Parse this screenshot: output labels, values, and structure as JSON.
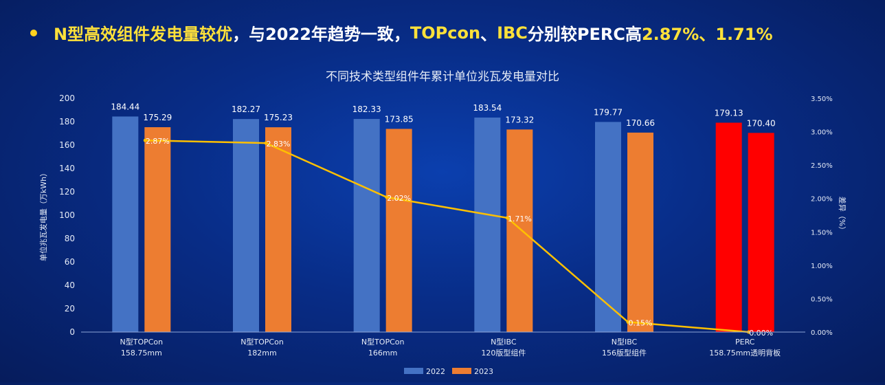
{
  "headline": {
    "part1": "N型高效组件发电量较优",
    "part2": "，与2022年趋势一致，",
    "part3": "TOPcon",
    "part4": "、",
    "part5": "IBC",
    "part6": "分别较PERC高",
    "part7": "2.87%、1.71%"
  },
  "colors": {
    "s2022": "#4472c4",
    "s2023": "#ed7d31",
    "perc": "#ff0000",
    "line": "#ffc000",
    "bullet": "#ffd21f"
  },
  "chart_data": {
    "type": "bar",
    "title": "不同技术类型组件年累计单位兆瓦发电量对比",
    "ylabel": "单位兆瓦发电量（万kWh）",
    "y2label": "差异（%）",
    "ylim": [
      0,
      200
    ],
    "yticks": [
      "0",
      "20",
      "40",
      "60",
      "80",
      "100",
      "120",
      "140",
      "160",
      "180",
      "200"
    ],
    "y2lim": [
      0,
      3.5
    ],
    "y2ticks": [
      "0.00%",
      "0.50%",
      "1.00%",
      "1.50%",
      "2.00%",
      "2.50%",
      "3.00%",
      "3.50%"
    ],
    "categories": [
      [
        "N型TOPCon",
        "158.75mm"
      ],
      [
        "N型TOPCon",
        "182mm"
      ],
      [
        "N型TOPCon",
        "166mm"
      ],
      [
        "N型IBC",
        "120版型组件"
      ],
      [
        "N型IBC",
        "156版型组件"
      ],
      [
        "PERC",
        "158.75mm透明背板"
      ]
    ],
    "series": [
      {
        "name": "2022",
        "values": [
          184.44,
          182.27,
          182.33,
          183.54,
          179.77,
          179.13
        ],
        "labels": [
          "184.44",
          "182.27",
          "182.33",
          "183.54",
          "179.77",
          "179.13"
        ]
      },
      {
        "name": "2023",
        "values": [
          175.29,
          175.23,
          173.85,
          173.32,
          170.66,
          170.4
        ],
        "labels": [
          "175.29",
          "175.23",
          "173.85",
          "173.32",
          "170.66",
          "170.40"
        ]
      }
    ],
    "diff": {
      "values": [
        2.87,
        2.83,
        2.02,
        1.71,
        0.15,
        0.0
      ],
      "labels": [
        "2.87%",
        "2.83%",
        "2.02%",
        "1.71%",
        "0.15%",
        "0.00%"
      ]
    },
    "legend": "bottom-center"
  }
}
